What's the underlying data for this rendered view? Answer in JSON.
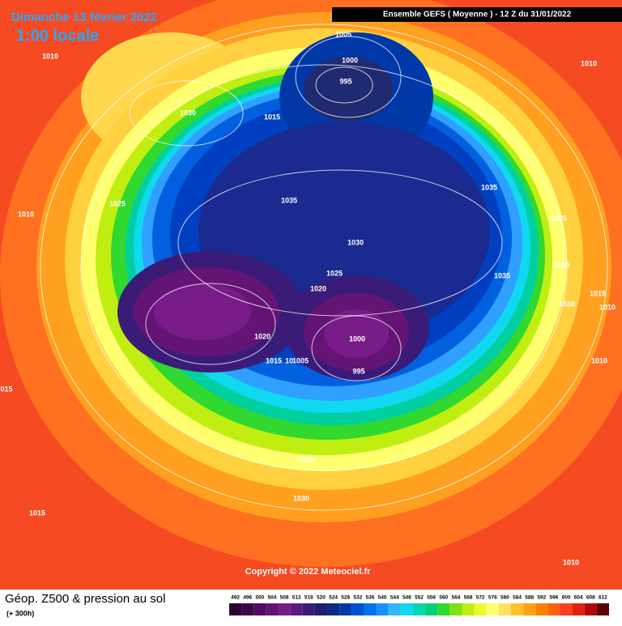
{
  "header": {
    "date": "Dimanche 13 février 2022",
    "time": "1:00 locale",
    "model": "Ensemble GEFS  ( Moyenne )  -  12 Z du 31/01/2022"
  },
  "isobar_labels": [
    "1005",
    "1000",
    "995",
    "1010",
    "1030",
    "1015",
    "1010",
    "1025",
    "1035",
    "1035",
    "1010",
    "1025",
    "1030",
    "1025",
    "1020",
    "1035",
    "1020",
    "1015",
    "1030",
    "1010",
    "1020",
    "1000",
    "1015",
    "10",
    "1005",
    "995",
    "1010",
    "015",
    "1025",
    "1030",
    "1015",
    "1010"
  ],
  "copyright": "Copyright © 2022 Meteociel.fr",
  "footer": {
    "title": "Géop. Z500 & pression au sol",
    "lead": "(+ 300h)"
  },
  "legend": {
    "ticks": [
      492,
      496,
      500,
      504,
      508,
      512,
      516,
      520,
      524,
      528,
      532,
      536,
      540,
      544,
      548,
      552,
      556,
      560,
      564,
      568,
      572,
      576,
      580,
      584,
      588,
      592,
      596,
      600,
      604,
      608,
      612
    ],
    "colors": [
      "#2a0030",
      "#3d0648",
      "#500c5e",
      "#641474",
      "#771c88",
      "#5a1a80",
      "#3a1c78",
      "#1e1e6e",
      "#0c2a82",
      "#0038a8",
      "#0050d0",
      "#0070f0",
      "#1890ff",
      "#30b8ff",
      "#10d8f0",
      "#00d8b0",
      "#00d070",
      "#30d830",
      "#80e010",
      "#c0ee10",
      "#f0f830",
      "#ffff70",
      "#ffe060",
      "#ffc030",
      "#ffa010",
      "#ff8000",
      "#ff6010",
      "#f84020",
      "#e02010",
      "#b00808",
      "#600000"
    ]
  }
}
